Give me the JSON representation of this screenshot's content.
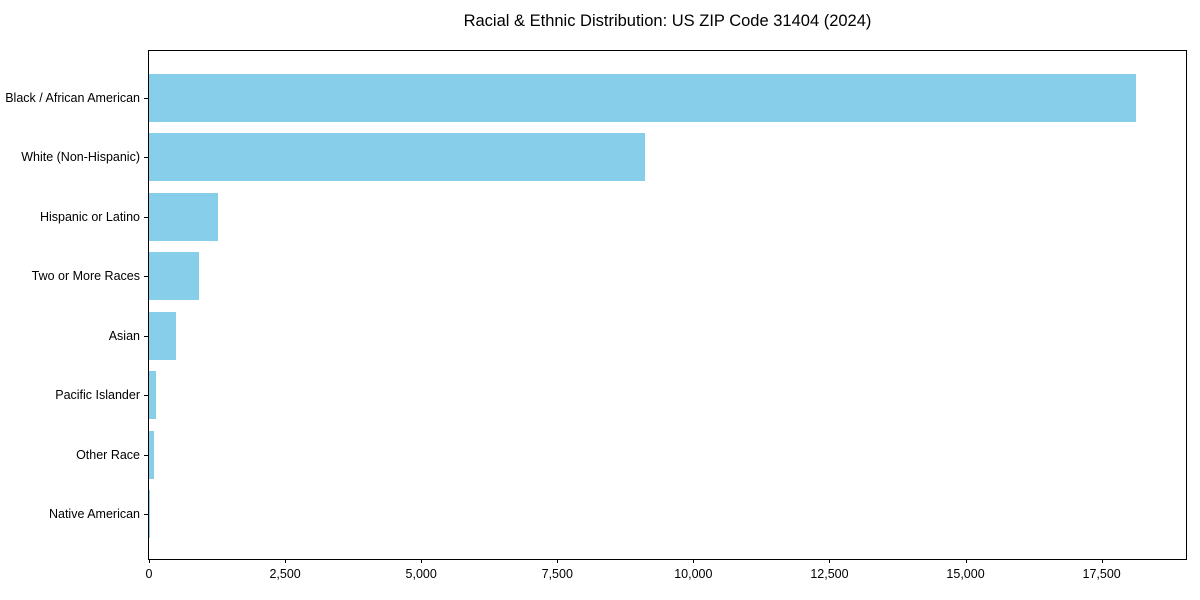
{
  "chart_data": {
    "type": "bar",
    "orientation": "horizontal",
    "title": "Racial & Ethnic Distribution: US ZIP Code 31404 (2024)",
    "xlabel": "",
    "ylabel": "",
    "categories": [
      "Black / African American",
      "White (Non-Hispanic)",
      "Hispanic or Latino",
      "Two or More Races",
      "Asian",
      "Pacific Islander",
      "Other Race",
      "Native American"
    ],
    "values": [
      18140,
      9115,
      1265,
      915,
      495,
      120,
      85,
      20
    ],
    "xlim": [
      0,
      19050
    ],
    "x_ticks": [
      0,
      2500,
      5000,
      7500,
      10000,
      12500,
      15000,
      17500
    ],
    "x_tick_labels": [
      "0",
      "2,500",
      "5,000",
      "7,500",
      "10,000",
      "12,500",
      "15,000",
      "17,500"
    ],
    "bar_color": "#87CEEB",
    "grid": false,
    "legend": null,
    "frame_color": "#000000"
  }
}
